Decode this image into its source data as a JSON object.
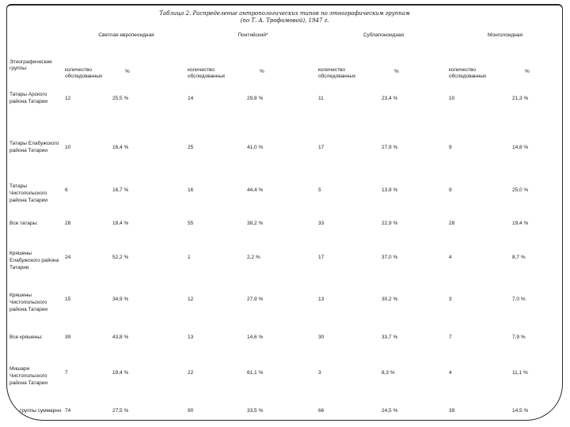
{
  "title": {
    "line1": "Таблица 2. Распределение антропологических типов по этнографическим группам",
    "line2": "(по Т. А. Трофимовой), 1947 г."
  },
  "table": {
    "row_header": "Этнографические группы:",
    "group_headers": [
      "Светлая европеоидная",
      "Понтийский*",
      "Сублапоноидная",
      "Монголоидная"
    ],
    "subheaders": {
      "count": "количество обследованных",
      "percent": "%"
    },
    "rows": [
      {
        "label": "Татары Арского района Татарии",
        "cells": [
          "12",
          "25,5 %",
          "14",
          "29,8 %",
          "11",
          "23,4 %",
          "10",
          "21,3 %"
        ]
      },
      {
        "label": "Татары Елабужского района Татарии",
        "cells": [
          "10",
          "16,4 %",
          "25",
          "41,0 %",
          "17",
          "27,9 %",
          "9",
          "14,8 %"
        ]
      },
      {
        "label": "Татары Чистопольского района Татарии",
        "cells": [
          "6",
          "16,7 %",
          "16",
          "44,4 %",
          "5",
          "13,9 %",
          "9",
          "25,0 %"
        ]
      },
      {
        "label": "Все татары:",
        "cells": [
          "28",
          "19,4 %",
          "55",
          "38,2 %",
          "33",
          "22,9 %",
          "28",
          "19,4 %"
        ]
      },
      {
        "label": "Кряшены Елабужского района Татарии",
        "cells": [
          "24",
          "52,2 %",
          "1",
          "2,2 %",
          "17",
          "37,0 %",
          "4",
          "8,7 %"
        ]
      },
      {
        "label": "Кряшены Чистопольского района Татарии",
        "cells": [
          "15",
          "34,9 %",
          "12",
          "27,9 %",
          "13",
          "30,2 %",
          "3",
          "7,0 %"
        ]
      },
      {
        "label": "Все кряшены:",
        "cells": [
          "39",
          "43,8 %",
          "13",
          "14,6 %",
          "30",
          "33,7 %",
          "7",
          "7,9 %"
        ]
      },
      {
        "label": "Мишари Чистопольского района Татарии",
        "cells": [
          "7",
          "19,4 %",
          "22",
          "61,1 %",
          "3",
          "8,3 %",
          "4",
          "11,1 %"
        ]
      },
      {
        "label": "Все группы суммарно",
        "cells": [
          "74",
          "27,5 %",
          "90",
          "33,5 %",
          "66",
          "24,5 %",
          "39",
          "14,5 %"
        ]
      }
    ]
  }
}
